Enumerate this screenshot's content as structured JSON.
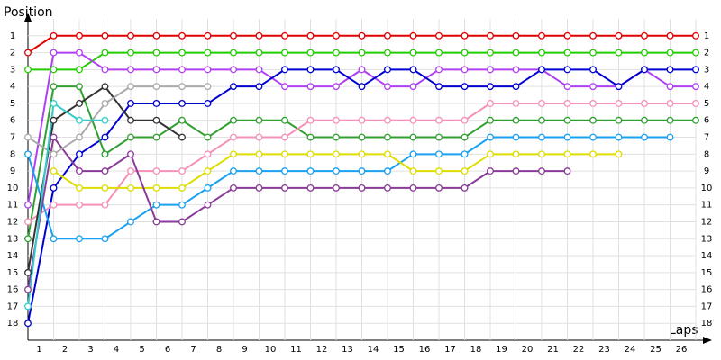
{
  "chart_data": {
    "type": "line",
    "y_label": "Position",
    "x_label": "Laps",
    "xlim": [
      0,
      26
    ],
    "xticks": [
      1,
      2,
      3,
      4,
      5,
      6,
      7,
      8,
      9,
      10,
      11,
      12,
      13,
      14,
      15,
      16,
      17,
      18,
      19,
      20,
      21,
      22,
      23,
      24,
      25,
      26
    ],
    "ylim": [
      0,
      19
    ],
    "yticks": [
      1,
      2,
      3,
      4,
      5,
      6,
      7,
      8,
      9,
      10,
      11,
      12,
      13,
      14,
      15,
      16,
      17,
      18
    ],
    "y_inverted": true,
    "grid": true,
    "x": [
      0,
      1,
      2,
      3,
      4,
      5,
      6,
      7,
      8,
      9,
      10,
      11,
      12,
      13,
      14,
      15,
      16,
      17,
      18,
      19,
      20,
      21,
      22,
      23,
      24,
      25,
      26
    ],
    "series": [
      {
        "color": "#e00000",
        "values": [
          2,
          1,
          1,
          1,
          1,
          1,
          1,
          1,
          1,
          1,
          1,
          1,
          1,
          1,
          1,
          1,
          1,
          1,
          1,
          1,
          1,
          1,
          1,
          1,
          1,
          1,
          1
        ]
      },
      {
        "color": "#22cc00",
        "values": [
          3,
          3,
          3,
          2,
          2,
          2,
          2,
          2,
          2,
          2,
          2,
          2,
          2,
          2,
          2,
          2,
          2,
          2,
          2,
          2,
          2,
          2,
          2,
          2,
          2,
          2,
          2
        ]
      },
      {
        "color": "#b040f0",
        "values": [
          11,
          2,
          2,
          3,
          3,
          3,
          3,
          3,
          3,
          3,
          4,
          4,
          4,
          3,
          4,
          4,
          3,
          3,
          3,
          3,
          3,
          4,
          4,
          4,
          3,
          4,
          4
        ]
      },
      {
        "color": "#0000d0",
        "values": [
          18,
          10,
          8,
          7,
          5,
          5,
          5,
          5,
          4,
          4,
          3,
          3,
          3,
          4,
          3,
          3,
          4,
          4,
          4,
          4,
          3,
          3,
          3,
          4,
          3,
          3,
          3
        ]
      },
      {
        "color": "#30a030",
        "values": [
          13,
          4,
          4,
          8,
          7,
          7,
          6,
          7,
          6,
          6,
          6,
          7,
          7,
          7,
          7,
          7,
          7,
          7,
          6,
          6,
          6,
          6,
          6,
          6,
          6,
          6,
          6
        ]
      },
      {
        "color": "#f590b8",
        "values": [
          12,
          11,
          11,
          11,
          9,
          9,
          9,
          8,
          7,
          7,
          7,
          6,
          6,
          6,
          6,
          6,
          6,
          6,
          5,
          5,
          5,
          5,
          5,
          5,
          5,
          5,
          5
        ]
      },
      {
        "color": "#1aa0f0",
        "values": [
          8,
          13,
          13,
          13,
          12,
          11,
          11,
          10,
          9,
          9,
          9,
          9,
          9,
          9,
          9,
          8,
          8,
          8,
          7,
          7,
          7,
          7,
          7,
          7,
          7,
          7,
          null
        ]
      },
      {
        "color": "#dddd00",
        "values": [
          null,
          9,
          10,
          10,
          10,
          10,
          10,
          9,
          8,
          8,
          8,
          8,
          8,
          8,
          8,
          9,
          9,
          9,
          8,
          8,
          8,
          8,
          8,
          8,
          null,
          null,
          null
        ]
      },
      {
        "color": "#8a3a98",
        "values": [
          16,
          7,
          9,
          9,
          8,
          12,
          12,
          11,
          10,
          10,
          10,
          10,
          10,
          10,
          10,
          10,
          10,
          10,
          9,
          9,
          9,
          9,
          null,
          null,
          null,
          null,
          null
        ]
      },
      {
        "color": "#333333",
        "values": [
          15,
          6,
          5,
          4,
          6,
          6,
          7,
          null,
          null,
          null,
          null,
          null,
          null,
          null,
          null,
          null,
          null,
          null,
          null,
          null,
          null,
          null,
          null,
          null,
          null,
          null,
          null
        ]
      },
      {
        "color": "#aaaaaa",
        "values": [
          7,
          8,
          7,
          5,
          4,
          4,
          4,
          4,
          null,
          null,
          null,
          null,
          null,
          null,
          null,
          null,
          null,
          null,
          null,
          null,
          null,
          null,
          null,
          null,
          null,
          null,
          null
        ]
      },
      {
        "color": "#33cccc",
        "values": [
          17,
          5,
          6,
          6,
          null,
          null,
          null,
          null,
          null,
          null,
          null,
          null,
          null,
          null,
          null,
          null,
          null,
          null,
          null,
          null,
          null,
          null,
          null,
          null,
          null,
          null,
          null
        ]
      }
    ]
  }
}
